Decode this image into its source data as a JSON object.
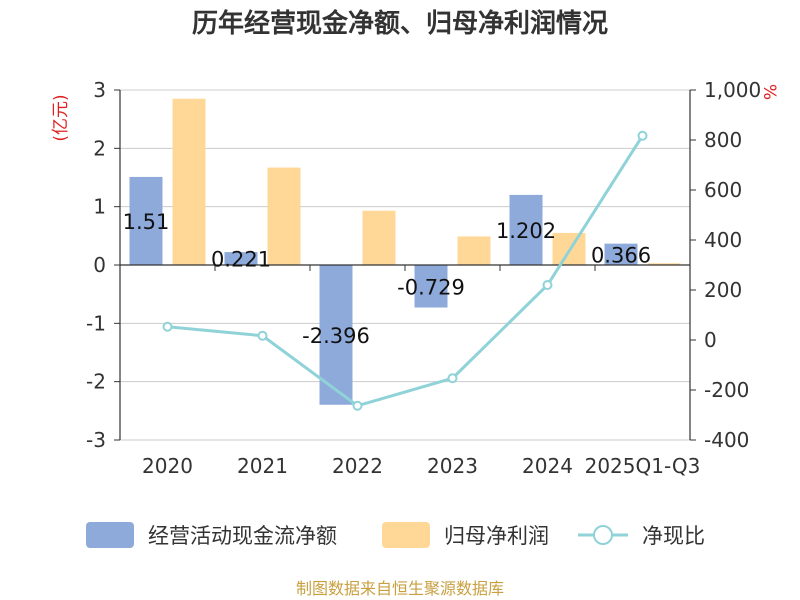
{
  "chart_data": {
    "type": "bar",
    "title": "历年经营现金净额、归母净利润情况",
    "categories": [
      "2020",
      "2021",
      "2022",
      "2023",
      "2024",
      "2025Q1-Q3"
    ],
    "series": [
      {
        "name": "经营活动现金流净额",
        "type": "bar",
        "axis": "left",
        "color": "#8eaadb",
        "values": [
          1.51,
          0.221,
          -2.396,
          -0.729,
          1.202,
          0.366
        ],
        "labels": [
          "1.51",
          "0.221",
          "-2.396",
          "-0.729",
          "1.202",
          "0.366"
        ]
      },
      {
        "name": "归母净利润",
        "type": "bar",
        "axis": "left",
        "color": "#ffd898",
        "values": [
          2.85,
          1.67,
          0.93,
          0.49,
          0.55,
          0.03
        ]
      },
      {
        "name": "净现比",
        "type": "line",
        "axis": "right",
        "color": "#8fd3d8",
        "values": [
          53,
          17,
          -263,
          -153,
          220,
          817
        ]
      }
    ],
    "y_left": {
      "unit": "(亿元)",
      "ylim": [
        -3,
        3
      ],
      "ticks": [
        "3",
        "2",
        "1",
        "0",
        "-1",
        "-2",
        "-3"
      ]
    },
    "y_right": {
      "unit": "%",
      "ylim": [
        -400,
        1000
      ],
      "ticks": [
        "1,000",
        "800",
        "600",
        "400",
        "200",
        "0",
        "-200",
        "-400"
      ]
    },
    "legend_position": "bottom"
  },
  "source": "制图数据来自恒生聚源数据库"
}
